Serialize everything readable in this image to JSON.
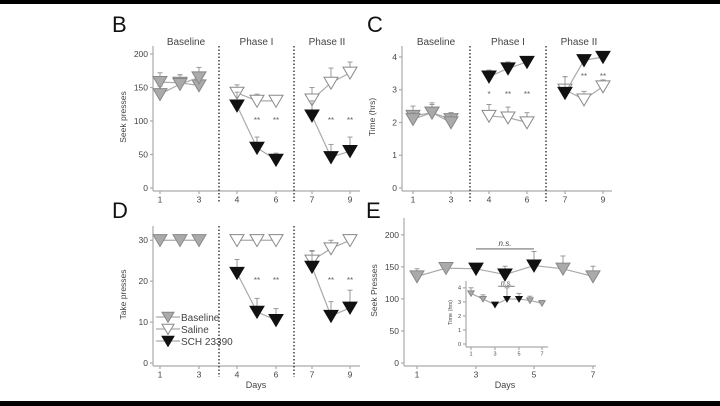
{
  "chart_data": [
    {
      "id": "B",
      "type": "line",
      "panel_letter": "B",
      "ylabel": "Seek presses",
      "ylim": [
        0,
        200
      ],
      "yticks": [
        0,
        50,
        100,
        150,
        200
      ],
      "xtick_labels": [
        "1",
        "3",
        "4",
        "6",
        "7",
        "9"
      ],
      "xlabel": "",
      "phases": [
        "Baseline",
        "Phase I",
        "Phase II"
      ],
      "series": [
        {
          "name": "Baseline",
          "style": "grey",
          "x": [
            1,
            2,
            3
          ],
          "values": [
            158,
            157,
            153
          ],
          "err": [
            14,
            12,
            14
          ]
        },
        {
          "name": "Baseline",
          "style": "grey",
          "x": [
            1,
            2,
            3
          ],
          "values": [
            140,
            155,
            165
          ],
          "err": [
            12,
            14,
            15
          ]
        },
        {
          "name": "Saline",
          "style": "white",
          "x": [
            4,
            5,
            6,
            7,
            8,
            9
          ],
          "values": [
            142,
            130,
            130,
            132,
            157,
            172
          ],
          "err": [
            12,
            10,
            8,
            18,
            22,
            16
          ],
          "breaks": [
            6
          ]
        },
        {
          "name": "SCH 23390",
          "style": "black",
          "x": [
            4,
            5,
            6,
            7,
            8,
            9
          ],
          "values": [
            123,
            60,
            42,
            108,
            46,
            55
          ],
          "err": [
            20,
            16,
            10,
            22,
            19,
            21
          ],
          "breaks": [
            6
          ]
        }
      ],
      "annotations": [
        {
          "x": 5,
          "y": 103,
          "text": "**"
        },
        {
          "x": 6,
          "y": 103,
          "text": "**"
        },
        {
          "x": 8,
          "y": 103,
          "text": "**"
        },
        {
          "x": 9,
          "y": 103,
          "text": "**"
        }
      ]
    },
    {
      "id": "C",
      "type": "line",
      "panel_letter": "C",
      "ylabel": "Time (hrs)",
      "ylim": [
        0,
        4
      ],
      "yticks": [
        0,
        1,
        2,
        3,
        4
      ],
      "xtick_labels": [
        "1",
        "3",
        "4",
        "6",
        "7",
        "9"
      ],
      "xlabel": "",
      "phases": [
        "Baseline",
        "Phase I",
        "Phase II"
      ],
      "series": [
        {
          "name": "Baseline",
          "style": "grey",
          "x": [
            1,
            2,
            3
          ],
          "values": [
            2.2,
            2.3,
            2.1
          ],
          "err": [
            0.3,
            0.3,
            0.2
          ]
        },
        {
          "name": "Baseline",
          "style": "grey",
          "x": [
            1,
            2,
            3
          ],
          "values": [
            2.1,
            2.3,
            2.0
          ],
          "err": [
            0.2,
            0.25,
            0.3
          ]
        },
        {
          "name": "Saline",
          "style": "white",
          "x": [
            4,
            5,
            6,
            7,
            8,
            9
          ],
          "values": [
            2.2,
            2.15,
            2.0,
            3.0,
            2.7,
            3.1
          ],
          "err": [
            0.35,
            0.32,
            0.3,
            0.4,
            0.25,
            0.2
          ],
          "breaks": [
            6
          ]
        },
        {
          "name": "SCH 23390",
          "style": "black",
          "x": [
            4,
            5,
            6,
            7,
            8,
            9
          ],
          "values": [
            3.4,
            3.65,
            3.85,
            2.9,
            3.9,
            4.0
          ],
          "err": [
            0.2,
            0.2,
            0.15,
            0.5,
            0.1,
            0.05
          ],
          "breaks": [
            6
          ]
        }
      ],
      "annotations": [
        {
          "x": 4,
          "y": 2.9,
          "text": "*"
        },
        {
          "x": 5,
          "y": 2.9,
          "text": "**"
        },
        {
          "x": 6,
          "y": 2.9,
          "text": "**"
        },
        {
          "x": 8,
          "y": 3.45,
          "text": "**"
        },
        {
          "x": 9,
          "y": 3.45,
          "text": "**"
        }
      ]
    },
    {
      "id": "D",
      "type": "line",
      "panel_letter": "D",
      "ylabel": "Take presses",
      "ylim": [
        0,
        33
      ],
      "yticks": [
        0,
        10,
        20,
        30
      ],
      "xtick_labels": [
        "1",
        "3",
        "4",
        "6",
        "7",
        "9"
      ],
      "xlabel": "Days",
      "phases": [],
      "series": [
        {
          "name": "Baseline",
          "style": "grey",
          "x": [
            1,
            2,
            3
          ],
          "values": [
            30,
            30,
            30
          ],
          "err": [
            0,
            0,
            0
          ]
        },
        {
          "name": "Saline",
          "style": "white",
          "x": [
            4,
            5,
            6,
            7,
            8,
            9
          ],
          "values": [
            30,
            30,
            30,
            25,
            28,
            30
          ],
          "err": [
            0,
            0,
            0,
            2.5,
            2,
            0
          ],
          "breaks": [
            6
          ]
        },
        {
          "name": "SCH 23390",
          "style": "black",
          "x": [
            4,
            5,
            6,
            7,
            8,
            9
          ],
          "values": [
            22,
            12.5,
            10.5,
            23.5,
            11.5,
            13.5
          ],
          "err": [
            3.3,
            3.3,
            2.8,
            3.8,
            3.5,
            4.3
          ],
          "breaks": [
            6
          ]
        }
      ],
      "annotations": [
        {
          "x": 5,
          "y": 20.5,
          "text": "**"
        },
        {
          "x": 6,
          "y": 20.5,
          "text": "**"
        },
        {
          "x": 8,
          "y": 20.5,
          "text": "**"
        },
        {
          "x": 9,
          "y": 20.5,
          "text": "**"
        }
      ],
      "legend": {
        "placement": "bottom-left",
        "entries": [
          {
            "label": "Baseline",
            "style": "grey"
          },
          {
            "label": "Saline",
            "style": "white"
          },
          {
            "label": "SCH 23390",
            "style": "black"
          }
        ]
      }
    },
    {
      "id": "E",
      "type": "line",
      "panel_letter": "E",
      "ylabel": "Seek Presses",
      "ylim": [
        0,
        220
      ],
      "yticks": [
        0,
        50,
        100,
        150,
        200
      ],
      "xtick_labels": [
        "1",
        "3",
        "5",
        "7"
      ],
      "xlabel": "Days",
      "series": [
        {
          "name": "Seek",
          "x": [
            1,
            2,
            3,
            4,
            5,
            6,
            7
          ],
          "values": [
            135,
            148,
            147,
            138,
            152,
            147,
            135
          ],
          "err": [
            12,
            8,
            5,
            13,
            22,
            20,
            16
          ],
          "styles": [
            "grey",
            "grey",
            "black",
            "black",
            "black",
            "grey",
            "grey"
          ]
        }
      ],
      "bracket": {
        "x": [
          3,
          5
        ],
        "y": 178,
        "text": "n.s."
      },
      "inset": {
        "ylabel": "Time (hrs)",
        "ylim": [
          0,
          4.2
        ],
        "yticks": [
          0,
          1,
          2,
          3,
          4
        ],
        "xtick_labels": [
          "1",
          "3",
          "5",
          "7"
        ],
        "series": [
          {
            "name": "Time",
            "x": [
              1,
              2,
              3,
              4,
              5,
              6,
              7
            ],
            "values": [
              3.6,
              3.2,
              2.8,
              3.2,
              3.2,
              3.1,
              2.9
            ],
            "err": [
              0.4,
              0.3,
              0.1,
              0.8,
              0.4,
              0.3,
              0.2
            ],
            "styles": [
              "grey",
              "grey",
              "black",
              "black",
              "black",
              "grey",
              "grey"
            ]
          }
        ],
        "bracket": {
          "x": [
            3.3,
            4.7
          ],
          "y": 4.1,
          "text": "n.s."
        }
      }
    }
  ]
}
